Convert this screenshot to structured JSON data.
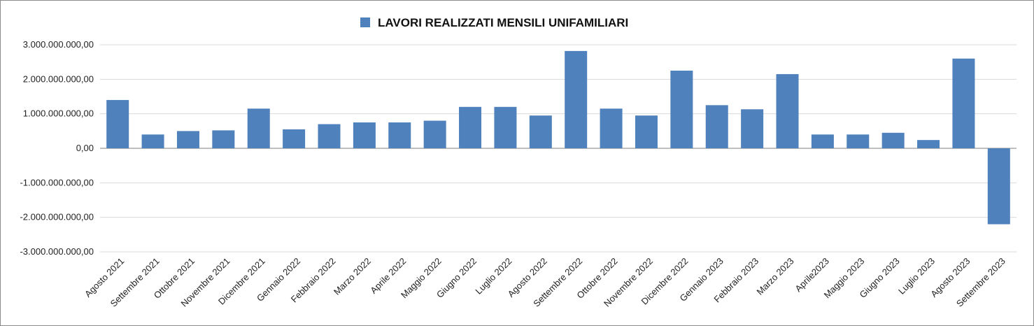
{
  "chart_data": {
    "type": "bar",
    "title": "",
    "xlabel": "",
    "ylabel": "",
    "legend": {
      "position": "top-center",
      "entries": [
        "LAVORI REALIZZATI MENSILI UNIFAMILIARI"
      ]
    },
    "grid": true,
    "ylim": [
      -3000000000,
      3000000000
    ],
    "y_ticks": [
      3000000000,
      2000000000,
      1000000000,
      0,
      -1000000000,
      -2000000000,
      -3000000000
    ],
    "y_tick_labels": [
      "3.000.000.000,00",
      "2.000.000.000,00",
      "1.000.000.000,00",
      "0,00",
      "-1.000.000.000,00",
      "-2.000.000.000,00",
      "-3.000.000.000,00"
    ],
    "categories": [
      "Agosto 2021",
      "Settembre 2021",
      "Ottobre 2021",
      "Novembre 2021",
      "Dicembre 2021",
      "Gennaio 2022",
      "Febbraio 2022",
      "Marzo 2022",
      "Aprile 2022",
      "Maggio 2022",
      "Giugno 2022",
      "Luglio 2022",
      "Agosto 2022",
      "Settembre 2022",
      "Ottobre 2022",
      "Novembre 2022",
      "Dicembre 2022",
      "Gennaio 2023",
      "Febbraio 2023",
      "Marzo 2023",
      "Aprile2023",
      "Maggio 2023",
      "Giugno 2023",
      "Luglio 2023",
      "Agosto 2023",
      "Settembre 2023"
    ],
    "series": [
      {
        "name": "LAVORI REALIZZATI MENSILI UNIFAMILIARI",
        "color": "#4f81bd",
        "values": [
          1400000000,
          400000000,
          500000000,
          520000000,
          1150000000,
          550000000,
          700000000,
          750000000,
          750000000,
          800000000,
          1200000000,
          1200000000,
          950000000,
          2820000000,
          1150000000,
          950000000,
          2250000000,
          1250000000,
          1130000000,
          2150000000,
          400000000,
          400000000,
          450000000,
          240000000,
          2600000000,
          -2200000000
        ]
      }
    ]
  }
}
